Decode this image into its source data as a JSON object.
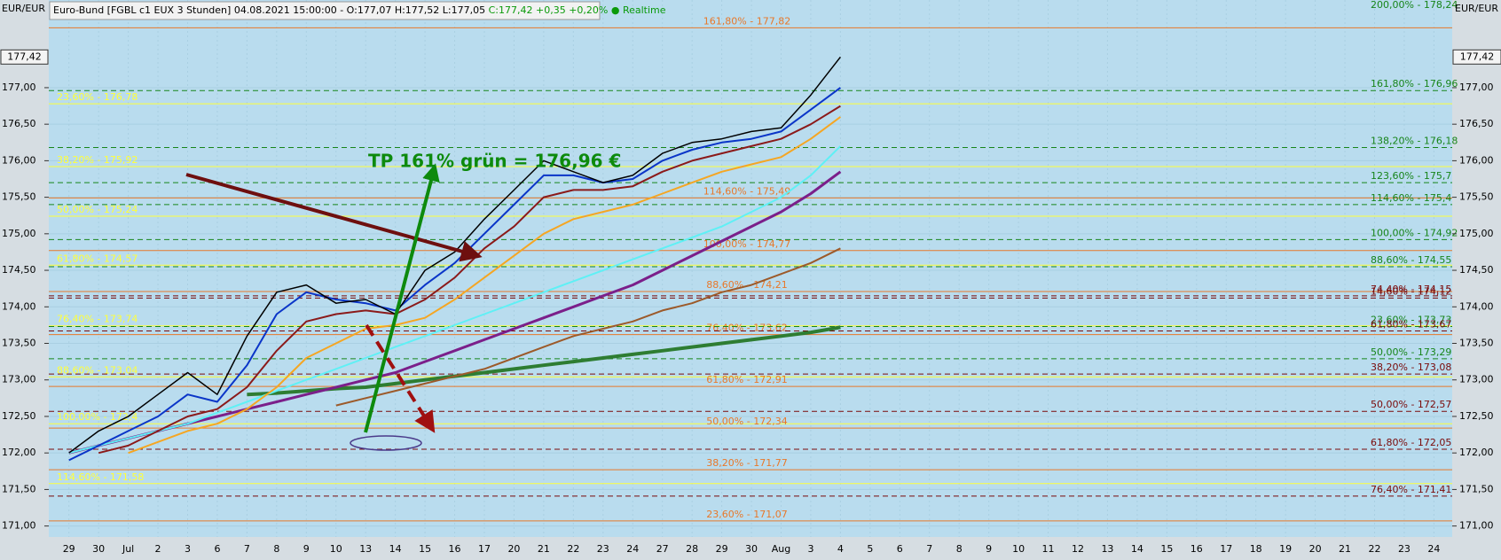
{
  "chart_data": {
    "type": "line",
    "title": "Euro-Bund [FGBL c1 EUX 3 Stunden] 04.08.2021 15:00:00 - O:177,07 H:177,52 L:177,05",
    "title_change": "C:177,42 +0,35 +0,20% ● Realtime",
    "currency_label": "EUR/EUR",
    "last_price": {
      "value": 177.42,
      "label": "177,42"
    },
    "annotation": "TP  161% grün  = 176,96 €",
    "grid": true,
    "ylim": [
      170.85,
      178.2
    ],
    "yticks": [
      {
        "value": 171,
        "label": "171,00"
      },
      {
        "value": 171.5,
        "label": "171,50"
      },
      {
        "value": 172,
        "label": "172,00"
      },
      {
        "value": 172.5,
        "label": "172,50"
      },
      {
        "value": 173,
        "label": "173,00"
      },
      {
        "value": 173.5,
        "label": "173,50"
      },
      {
        "value": 174,
        "label": "174,00"
      },
      {
        "value": 174.5,
        "label": "174,50"
      },
      {
        "value": 175,
        "label": "175,00"
      },
      {
        "value": 175.5,
        "label": "175,50"
      },
      {
        "value": 176,
        "label": "176,00"
      },
      {
        "value": 176.5,
        "label": "176,50"
      },
      {
        "value": 177,
        "label": "177,00"
      }
    ],
    "categories": [
      "29",
      "30",
      "Jul",
      "2",
      "3",
      "6",
      "7",
      "8",
      "9",
      "10",
      "13",
      "14",
      "15",
      "16",
      "17",
      "20",
      "21",
      "22",
      "23",
      "24",
      "27",
      "28",
      "29",
      "30",
      "Aug",
      "3",
      "4",
      "5",
      "6",
      "7",
      "8",
      "9",
      "10",
      "11",
      "12",
      "13",
      "14",
      "15",
      "16",
      "17",
      "18",
      "19",
      "20",
      "21",
      "22",
      "23",
      "24"
    ],
    "series": [
      {
        "color": "#2e7d32",
        "width": 4,
        "values": [
          null,
          null,
          null,
          null,
          null,
          null,
          172.8,
          172.82,
          172.85,
          172.88,
          172.9,
          172.95,
          173.0,
          173.05,
          173.1,
          173.15,
          173.2,
          173.25,
          173.3,
          173.35,
          173.4,
          173.45,
          173.5,
          173.55,
          173.6,
          173.65,
          173.72,
          null,
          null,
          null,
          null,
          null,
          null,
          null,
          null,
          null,
          null,
          null,
          null,
          null,
          null,
          null,
          null,
          null,
          null,
          null,
          null
        ]
      },
      {
        "color": "#9c5a2a",
        "width": 2,
        "values": [
          null,
          null,
          null,
          null,
          null,
          null,
          null,
          null,
          null,
          172.65,
          172.75,
          172.85,
          172.95,
          173.05,
          173.15,
          173.3,
          173.45,
          173.6,
          173.7,
          173.8,
          173.95,
          174.05,
          174.2,
          174.3,
          174.45,
          174.6,
          174.8,
          null,
          null,
          null,
          null,
          null,
          null,
          null,
          null,
          null,
          null,
          null,
          null,
          null,
          null,
          null,
          null,
          null,
          null,
          null,
          null
        ]
      },
      {
        "color": "#7b1f8a",
        "width": 3,
        "values": [
          172.0,
          172.1,
          172.2,
          172.3,
          172.4,
          172.5,
          172.6,
          172.7,
          172.8,
          172.9,
          173.0,
          173.1,
          173.25,
          173.4,
          173.55,
          173.7,
          173.85,
          174.0,
          174.15,
          174.3,
          174.5,
          174.7,
          174.9,
          175.1,
          175.3,
          175.55,
          175.85,
          null,
          null,
          null,
          null,
          null,
          null,
          null,
          null,
          null,
          null,
          null,
          null,
          null,
          null,
          null,
          null,
          null,
          null,
          null,
          null
        ]
      },
      {
        "color": "#5ff0f5",
        "width": 2,
        "values": [
          172.0,
          172.1,
          172.2,
          172.3,
          172.4,
          172.55,
          172.7,
          172.85,
          173.0,
          173.15,
          173.3,
          173.45,
          173.6,
          173.75,
          173.9,
          174.05,
          174.2,
          174.35,
          174.5,
          174.65,
          174.8,
          174.95,
          175.1,
          175.3,
          175.5,
          175.8,
          176.2,
          null,
          null,
          null,
          null,
          null,
          null,
          null,
          null,
          null,
          null,
          null,
          null,
          null,
          null,
          null,
          null,
          null,
          null,
          null,
          null
        ]
      },
      {
        "color": "#f5a623",
        "width": 2,
        "values": [
          null,
          null,
          172.0,
          172.15,
          172.3,
          172.4,
          172.6,
          172.9,
          173.3,
          173.5,
          173.7,
          173.75,
          173.85,
          174.1,
          174.4,
          174.7,
          175.0,
          175.2,
          175.3,
          175.4,
          175.55,
          175.7,
          175.85,
          175.95,
          176.05,
          176.3,
          176.6,
          null,
          null,
          null,
          null,
          null,
          null,
          null,
          null,
          null,
          null,
          null,
          null,
          null,
          null,
          null,
          null,
          null,
          null,
          null,
          null
        ]
      },
      {
        "color": "#8b1a1a",
        "width": 2,
        "values": [
          null,
          172.0,
          172.1,
          172.3,
          172.5,
          172.6,
          172.9,
          173.4,
          173.8,
          173.9,
          173.95,
          173.9,
          174.1,
          174.4,
          174.8,
          175.1,
          175.5,
          175.6,
          175.6,
          175.65,
          175.85,
          176.0,
          176.1,
          176.2,
          176.3,
          176.5,
          176.75,
          null,
          null,
          null,
          null,
          null,
          null,
          null,
          null,
          null,
          null,
          null,
          null,
          null,
          null,
          null,
          null,
          null,
          null,
          null,
          null
        ]
      },
      {
        "color": "#0a35c8",
        "width": 2,
        "values": [
          171.9,
          172.1,
          172.3,
          172.5,
          172.8,
          172.7,
          173.2,
          173.9,
          174.2,
          174.1,
          174.05,
          173.95,
          174.3,
          174.6,
          175.0,
          175.4,
          175.8,
          175.8,
          175.7,
          175.75,
          176.0,
          176.15,
          176.25,
          176.3,
          176.4,
          176.7,
          177.0,
          null,
          null,
          null,
          null,
          null,
          null,
          null,
          null,
          null,
          null,
          null,
          null,
          null,
          null,
          null,
          null,
          null,
          null,
          null,
          null
        ]
      },
      {
        "color": "#000000",
        "width": 1.5,
        "values": [
          172.0,
          172.3,
          172.5,
          172.8,
          173.1,
          172.8,
          173.6,
          174.2,
          174.3,
          174.05,
          174.1,
          173.9,
          174.5,
          174.75,
          175.2,
          175.6,
          176.0,
          175.85,
          175.7,
          175.8,
          176.1,
          176.25,
          176.3,
          176.4,
          176.45,
          176.9,
          177.42,
          null,
          null,
          null,
          null,
          null,
          null,
          null,
          null,
          null,
          null,
          null,
          null,
          null,
          null,
          null,
          null,
          null,
          null,
          null,
          null
        ]
      }
    ],
    "level_sets": [
      {
        "color": "#ffff3a",
        "dashed": false,
        "levels": [
          {
            "value": 176.78,
            "label": "23,60% - 176,78"
          },
          {
            "value": 175.92,
            "label": "38,20% - 175,92"
          },
          {
            "value": 175.24,
            "label": "50,00% - 175,24"
          },
          {
            "value": 174.57,
            "label": "61,80% - 174,57"
          },
          {
            "value": 173.74,
            "label": "76,40% - 173,74"
          },
          {
            "value": 173.04,
            "label": "88,60% - 173,04"
          },
          {
            "value": 172.4,
            "label": "100,00% - 172,4"
          },
          {
            "value": 171.58,
            "label": "114,60% - 171,58"
          }
        ]
      },
      {
        "color": "#e8782a",
        "dashed": false,
        "levels": [
          {
            "value": 177.82,
            "label": "161,80% - 177,82"
          },
          {
            "value": 175.49,
            "label": "114,60% - 175,49"
          },
          {
            "value": 174.77,
            "label": "100,00% - 174,77"
          },
          {
            "value": 174.21,
            "label": "88,60% - 174,21"
          },
          {
            "value": 173.62,
            "label": "76,40% - 173,62"
          },
          {
            "value": 172.91,
            "label": "61,80% - 172,91"
          },
          {
            "value": 172.34,
            "label": "50,00% - 172,34"
          },
          {
            "value": 171.77,
            "label": "38,20% - 171,77"
          },
          {
            "value": 171.07,
            "label": "23,60% - 171,07"
          }
        ]
      },
      {
        "color": "#17851a",
        "dashed": true,
        "levels": [
          {
            "value": 178.24,
            "label": "200,00% - 178,24"
          },
          {
            "value": 176.96,
            "label": "161,80% - 176,96"
          },
          {
            "value": 176.18,
            "label": "138,20% - 176,18"
          },
          {
            "value": 175.7,
            "label": "123,60% - 175,7"
          },
          {
            "value": 175.4,
            "label": "114,60% - 175,4"
          },
          {
            "value": 174.92,
            "label": "100,00% - 174,92"
          },
          {
            "value": 174.55,
            "label": "88,60% - 174,55"
          },
          {
            "value": 173.73,
            "label": "23,60% - 173,73"
          },
          {
            "value": 173.29,
            "label": "50,00% - 173,29"
          }
        ]
      },
      {
        "color": "#7a0a0a",
        "dashed": true,
        "levels": [
          {
            "value": 174.15,
            "label": "74,40% - 174,15"
          },
          {
            "value": 174.12,
            "label": "14,60% - 174,12"
          },
          {
            "value": 173.67,
            "label": "61,80% - 173,67"
          },
          {
            "value": 173.08,
            "label": "38,20% - 173,08"
          },
          {
            "value": 172.57,
            "label": "50,00% - 172,57"
          },
          {
            "value": 172.05,
            "label": "61,80% - 172,05"
          },
          {
            "value": 171.41,
            "label": "76,40% - 171,41"
          }
        ]
      }
    ]
  }
}
